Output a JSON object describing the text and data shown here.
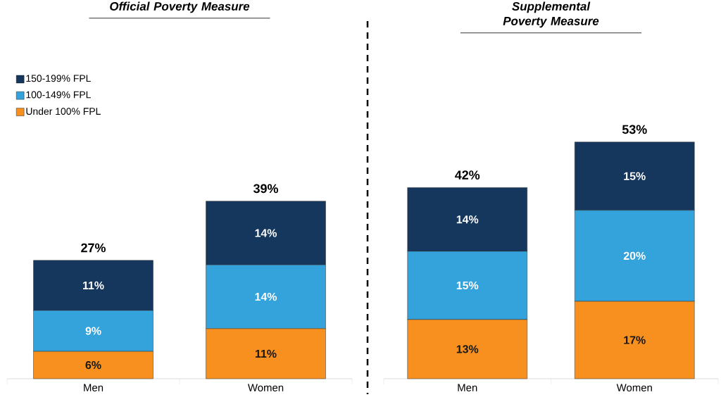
{
  "chart_data": [
    {
      "type": "bar",
      "stacked": true,
      "title": "Official Poverty Measure",
      "categories": [
        "Men",
        "Women"
      ],
      "legend": "top left",
      "series": [
        {
          "name": "Under 100% FPL",
          "color": "#f7901e",
          "values": [
            6,
            11
          ],
          "value_labels": [
            "6%",
            "11%"
          ]
        },
        {
          "name": "100-149% FPL",
          "color": "#34a3dc",
          "values": [
            9,
            14
          ],
          "value_labels": [
            "9%",
            "14%"
          ]
        },
        {
          "name": "150-199% FPL",
          "color": "#15375e",
          "values": [
            11,
            14
          ],
          "value_labels": [
            "11%",
            "14%"
          ]
        }
      ],
      "totals": [
        "27%",
        "39%"
      ]
    },
    {
      "type": "bar",
      "stacked": true,
      "title": "Supplemental Poverty Measure",
      "categories": [
        "Men",
        "Women"
      ],
      "series": [
        {
          "color": "#f7901e",
          "values": [
            13,
            17
          ],
          "value_labels": [
            "13%",
            "17%"
          ]
        },
        {
          "color": "#34a3dc",
          "values": [
            15,
            20
          ],
          "value_labels": [
            "15%",
            "20%"
          ]
        },
        {
          "color": "#15375e",
          "values": [
            14,
            15
          ],
          "value_labels": [
            "14%",
            "15%"
          ]
        }
      ],
      "totals": [
        "42%",
        "53%"
      ]
    }
  ]
}
